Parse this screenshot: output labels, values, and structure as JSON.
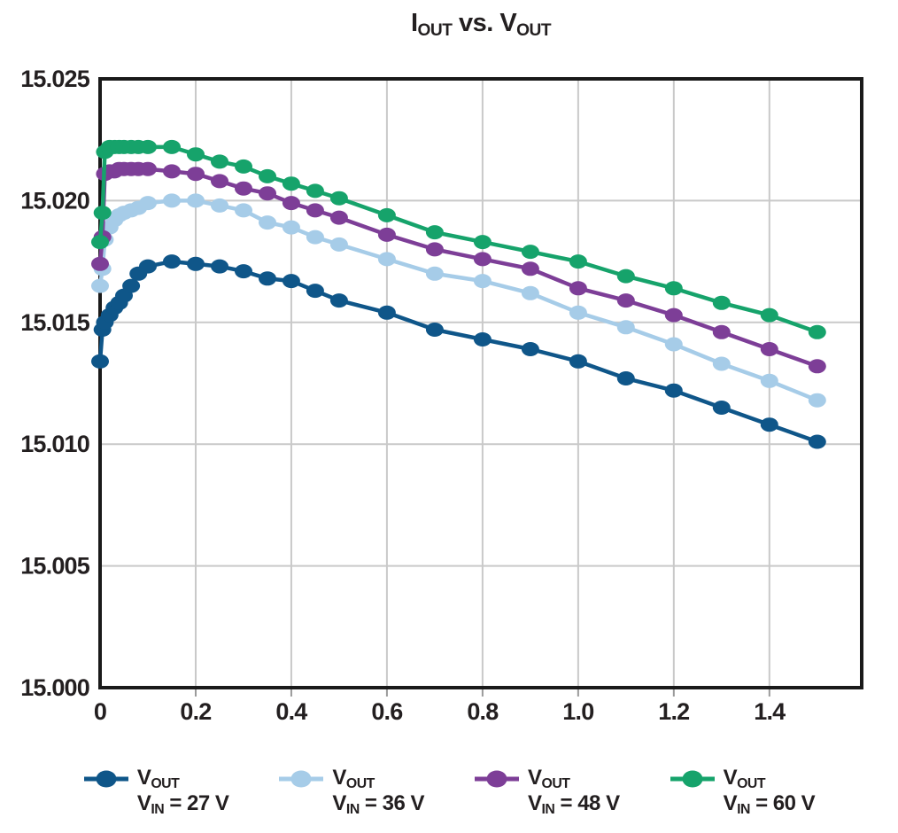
{
  "figure": {
    "title": {
      "part1": "I",
      "part1_sub": "OUT",
      "part2": " vs. V",
      "part2_sub": "OUT"
    }
  },
  "legend": {
    "items": [
      {
        "id": "vin-27",
        "color": "#0f5689",
        "line1_main": "V",
        "line1_sub": "OUT",
        "line2_main": "V",
        "line2_sub": "IN",
        "line2_rest": " = 27 V"
      },
      {
        "id": "vin-36",
        "color": "#a6cce8",
        "line1_main": "V",
        "line1_sub": "OUT",
        "line2_main": "V",
        "line2_sub": "IN",
        "line2_rest": " = 36 V"
      },
      {
        "id": "vin-48",
        "color": "#7d3e97",
        "line1_main": "V",
        "line1_sub": "OUT",
        "line2_main": "V",
        "line2_sub": "IN",
        "line2_rest": " = 48 V"
      },
      {
        "id": "vin-60",
        "color": "#16a36b",
        "line1_main": "V",
        "line1_sub": "OUT",
        "line2_main": "V",
        "line2_sub": "IN",
        "line2_rest": " = 60 V"
      }
    ]
  },
  "chart_data": {
    "type": "line",
    "title": "IOUT vs. VOUT",
    "xlabel": "",
    "ylabel": "",
    "xlim": [
      0,
      1.593
    ],
    "ylim": [
      15.0,
      15.025
    ],
    "grid": true,
    "legend_position": "bottom",
    "x_ticks": [
      {
        "v": 0,
        "label": "0"
      },
      {
        "v": 0.2,
        "label": "0.2"
      },
      {
        "v": 0.4,
        "label": "0.4"
      },
      {
        "v": 0.6,
        "label": "0.6"
      },
      {
        "v": 0.8,
        "label": "0.8"
      },
      {
        "v": 1.0,
        "label": "1.0"
      },
      {
        "v": 1.2,
        "label": "1.2"
      },
      {
        "v": 1.4,
        "label": "1.4"
      }
    ],
    "y_ticks": [
      {
        "v": 15.0,
        "label": "15.000"
      },
      {
        "v": 15.005,
        "label": "15.005"
      },
      {
        "v": 15.01,
        "label": "15.010"
      },
      {
        "v": 15.015,
        "label": "15.015"
      },
      {
        "v": 15.02,
        "label": "15.020"
      },
      {
        "v": 15.025,
        "label": "15.025"
      }
    ],
    "x_gridlines": [
      0.2,
      0.4,
      0.6,
      0.8,
      1.0,
      1.2,
      1.4
    ],
    "y_gridlines": [
      15.005,
      15.01,
      15.015,
      15.02
    ],
    "x": [
      0,
      0.005,
      0.01,
      0.02,
      0.03,
      0.04,
      0.05,
      0.065,
      0.08,
      0.1,
      0.15,
      0.2,
      0.25,
      0.3,
      0.35,
      0.4,
      0.45,
      0.5,
      0.6,
      0.7,
      0.8,
      0.9,
      1.0,
      1.1,
      1.2,
      1.3,
      1.4,
      1.5
    ],
    "series": [
      {
        "name": "VOUT, VIN = 27 V",
        "color": "#0f5689",
        "values": [
          15.0134,
          15.0147,
          15.015,
          15.0153,
          15.0156,
          15.0158,
          15.0161,
          15.0165,
          15.017,
          15.0173,
          15.0175,
          15.0174,
          15.0173,
          15.0171,
          15.0168,
          15.0167,
          15.0163,
          15.0159,
          15.0154,
          15.0147,
          15.0143,
          15.0139,
          15.0134,
          15.0127,
          15.0122,
          15.0115,
          15.0108,
          15.0101
        ]
      },
      {
        "name": "VOUT, VIN = 36 V",
        "color": "#a6cce8",
        "values": [
          15.0165,
          15.0172,
          15.0184,
          15.0189,
          15.0192,
          15.0194,
          15.0195,
          15.0196,
          15.0197,
          15.0199,
          15.02,
          15.02,
          15.0198,
          15.0196,
          15.0191,
          15.0189,
          15.0185,
          15.0182,
          15.0176,
          15.017,
          15.0167,
          15.0162,
          15.0154,
          15.0148,
          15.0141,
          15.0133,
          15.0126,
          15.0118
        ]
      },
      {
        "name": "VOUT, VIN = 48 V",
        "color": "#7d3e97",
        "values": [
          15.0174,
          15.0185,
          15.0211,
          15.0212,
          15.0212,
          15.0213,
          15.0213,
          15.0213,
          15.0213,
          15.0213,
          15.0212,
          15.0211,
          15.0208,
          15.0205,
          15.0203,
          15.0199,
          15.0196,
          15.0193,
          15.0186,
          15.018,
          15.0176,
          15.0172,
          15.0164,
          15.0159,
          15.0153,
          15.0146,
          15.0139,
          15.0132
        ]
      },
      {
        "name": "VOUT, VIN = 60 V",
        "color": "#16a36b",
        "values": [
          15.0183,
          15.0195,
          15.022,
          15.0222,
          15.0222,
          15.0222,
          15.0222,
          15.0222,
          15.0222,
          15.0222,
          15.0222,
          15.0219,
          15.0216,
          15.0214,
          15.021,
          15.0207,
          15.0204,
          15.0201,
          15.0194,
          15.0187,
          15.0183,
          15.0179,
          15.0175,
          15.0169,
          15.0164,
          15.0158,
          15.0153,
          15.0146
        ]
      }
    ],
    "style": {
      "grid_color": "#c9c9c9",
      "border_color": "#1a1a1a",
      "tick_color": "#9a9a9a",
      "text_color": "#231f20"
    }
  }
}
